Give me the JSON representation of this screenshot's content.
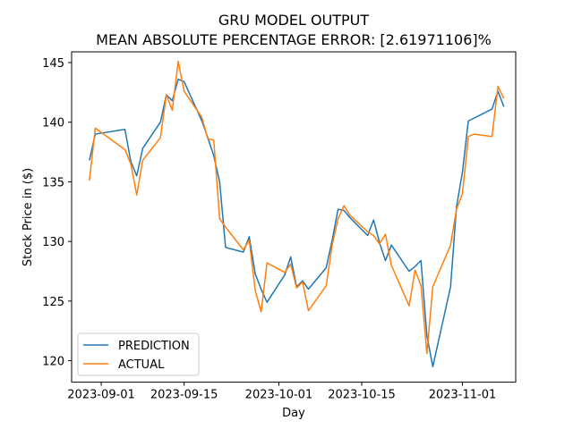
{
  "chart_data": {
    "type": "line",
    "title": "GRU MODEL OUTPUT",
    "subtitle": "MEAN ABSOLUTE PERCENTAGE ERROR: [2.61971106]%",
    "xlabel": "Day",
    "ylabel": "Stock Price in ($)",
    "x_tick_labels": [
      "2023-09-01",
      "2023-09-15",
      "2023-10-01",
      "2023-10-15",
      "2023-11-01"
    ],
    "y_ticks": [
      120,
      125,
      130,
      135,
      140,
      145
    ],
    "xlim": [
      "2023-08-27",
      "2023-11-10"
    ],
    "ylim": [
      118.2,
      145.9
    ],
    "grid": false,
    "legend_position": "lower-left",
    "series": [
      {
        "name": "PREDICTION",
        "color": "#1f77b4",
        "points": [
          [
            "2023-08-30",
            136.8
          ],
          [
            "2023-08-31",
            139.0
          ],
          [
            "2023-09-05",
            139.4
          ],
          [
            "2023-09-06",
            136.7
          ],
          [
            "2023-09-07",
            135.5
          ],
          [
            "2023-09-08",
            137.8
          ],
          [
            "2023-09-11",
            140.0
          ],
          [
            "2023-09-12",
            142.3
          ],
          [
            "2023-09-13",
            141.8
          ],
          [
            "2023-09-14",
            143.6
          ],
          [
            "2023-09-15",
            143.4
          ],
          [
            "2023-09-18",
            140.1
          ],
          [
            "2023-09-19",
            138.7
          ],
          [
            "2023-09-20",
            137.2
          ],
          [
            "2023-09-21",
            135.0
          ],
          [
            "2023-09-22",
            129.5
          ],
          [
            "2023-09-25",
            129.1
          ],
          [
            "2023-09-26",
            130.4
          ],
          [
            "2023-09-27",
            127.3
          ],
          [
            "2023-09-28",
            126.0
          ],
          [
            "2023-09-29",
            124.9
          ],
          [
            "2023-10-02",
            127.2
          ],
          [
            "2023-10-03",
            128.7
          ],
          [
            "2023-10-04",
            126.2
          ],
          [
            "2023-10-05",
            126.7
          ],
          [
            "2023-10-06",
            126.0
          ],
          [
            "2023-10-09",
            127.8
          ],
          [
            "2023-10-10",
            130.1
          ],
          [
            "2023-10-11",
            132.7
          ],
          [
            "2023-10-12",
            132.6
          ],
          [
            "2023-10-13",
            132.0
          ],
          [
            "2023-10-16",
            130.5
          ],
          [
            "2023-10-17",
            131.8
          ],
          [
            "2023-10-18",
            129.9
          ],
          [
            "2023-10-19",
            128.4
          ],
          [
            "2023-10-20",
            129.7
          ],
          [
            "2023-10-23",
            127.5
          ],
          [
            "2023-10-24",
            127.9
          ],
          [
            "2023-10-25",
            128.4
          ],
          [
            "2023-10-26",
            122.1
          ],
          [
            "2023-10-27",
            119.5
          ],
          [
            "2023-10-30",
            126.2
          ],
          [
            "2023-10-31",
            132.9
          ],
          [
            "2023-11-01",
            135.8
          ],
          [
            "2023-11-02",
            140.1
          ],
          [
            "2023-11-06",
            141.1
          ],
          [
            "2023-11-07",
            142.6
          ],
          [
            "2023-11-08",
            141.3
          ]
        ]
      },
      {
        "name": "ACTUAL",
        "color": "#ff7f0e",
        "points": [
          [
            "2023-08-30",
            135.1
          ],
          [
            "2023-08-31",
            139.5
          ],
          [
            "2023-09-05",
            137.7
          ],
          [
            "2023-09-06",
            136.5
          ],
          [
            "2023-09-07",
            133.9
          ],
          [
            "2023-09-08",
            136.8
          ],
          [
            "2023-09-11",
            138.7
          ],
          [
            "2023-09-12",
            142.3
          ],
          [
            "2023-09-13",
            141.0
          ],
          [
            "2023-09-14",
            145.1
          ],
          [
            "2023-09-15",
            142.6
          ],
          [
            "2023-09-18",
            140.4
          ],
          [
            "2023-09-19",
            138.6
          ],
          [
            "2023-09-20",
            138.5
          ],
          [
            "2023-09-21",
            131.9
          ],
          [
            "2023-09-22",
            131.2
          ],
          [
            "2023-09-25",
            129.3
          ],
          [
            "2023-09-26",
            130.1
          ],
          [
            "2023-09-27",
            125.9
          ],
          [
            "2023-09-28",
            124.1
          ],
          [
            "2023-09-29",
            128.2
          ],
          [
            "2023-10-02",
            127.4
          ],
          [
            "2023-10-03",
            128.1
          ],
          [
            "2023-10-04",
            126.1
          ],
          [
            "2023-10-05",
            126.6
          ],
          [
            "2023-10-06",
            124.2
          ],
          [
            "2023-10-09",
            126.3
          ],
          [
            "2023-10-10",
            129.7
          ],
          [
            "2023-10-11",
            131.9
          ],
          [
            "2023-10-12",
            133.0
          ],
          [
            "2023-10-13",
            132.2
          ],
          [
            "2023-10-16",
            130.8
          ],
          [
            "2023-10-17",
            130.5
          ],
          [
            "2023-10-18",
            129.8
          ],
          [
            "2023-10-19",
            130.6
          ],
          [
            "2023-10-20",
            128.0
          ],
          [
            "2023-10-23",
            124.6
          ],
          [
            "2023-10-24",
            127.6
          ],
          [
            "2023-10-25",
            126.3
          ],
          [
            "2023-10-26",
            120.6
          ],
          [
            "2023-10-27",
            126.2
          ],
          [
            "2023-10-30",
            129.7
          ],
          [
            "2023-10-31",
            132.7
          ],
          [
            "2023-11-01",
            134.0
          ],
          [
            "2023-11-02",
            138.8
          ],
          [
            "2023-11-03",
            139.0
          ],
          [
            "2023-11-06",
            138.8
          ],
          [
            "2023-11-07",
            143.0
          ],
          [
            "2023-11-08",
            142.0
          ]
        ]
      }
    ]
  }
}
